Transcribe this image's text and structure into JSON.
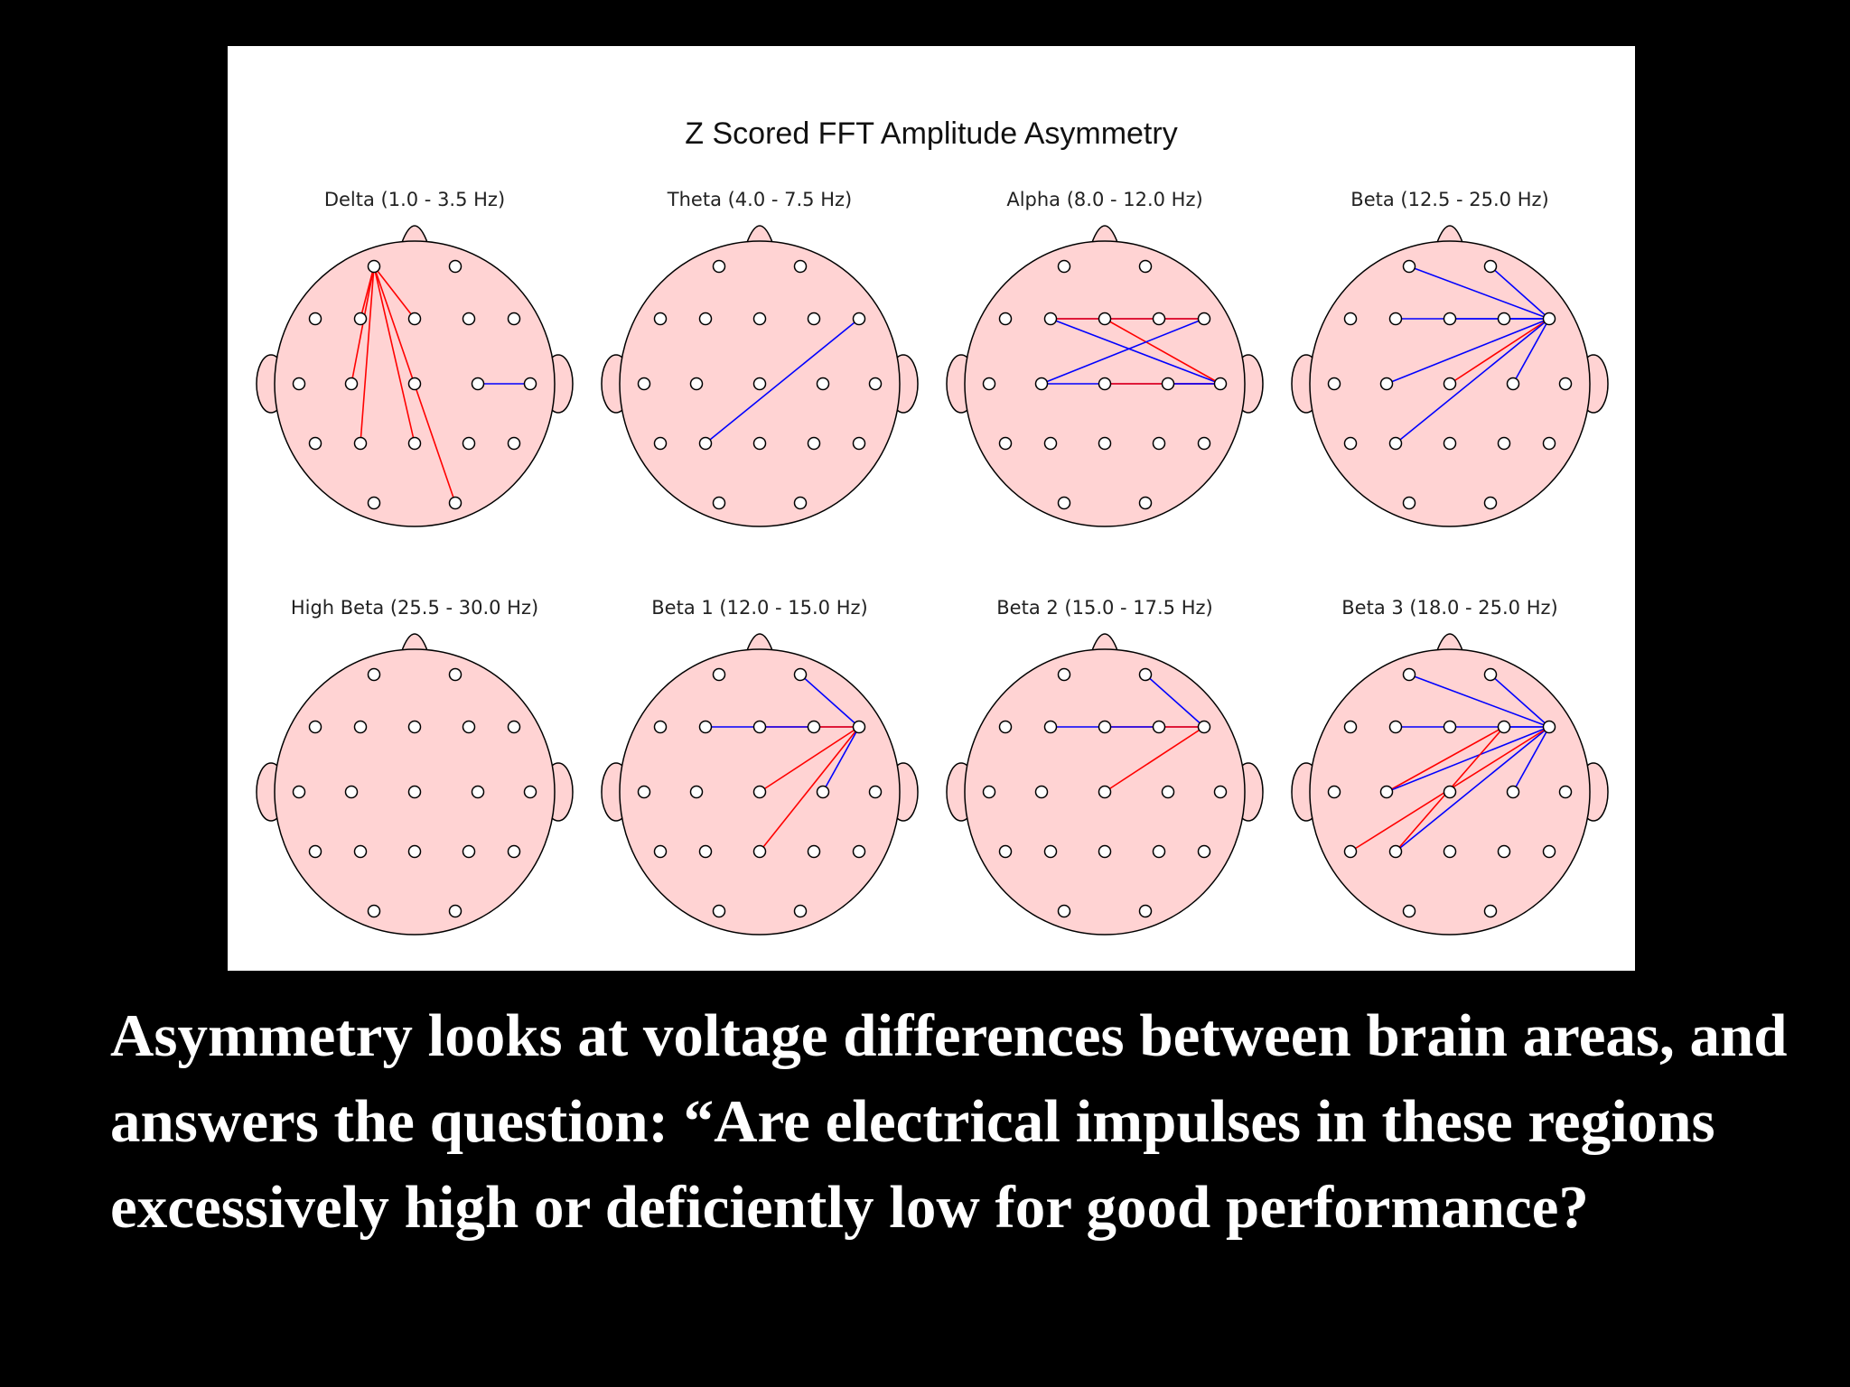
{
  "figure": {
    "title": "Z Scored FFT Amplitude Asymmetry",
    "colors": {
      "head_fill": "#ffd3d3",
      "head_outline": "#000000",
      "electrode_fill": "#ffffff",
      "line_red": "#ff0000",
      "line_blue": "#0000ff"
    },
    "panels": [
      {
        "label": "Delta (1.0 - 3.5 Hz)",
        "connections": [
          {
            "from": "Fp1",
            "to": "F3",
            "color": "red"
          },
          {
            "from": "Fp1",
            "to": "Fz",
            "color": "red"
          },
          {
            "from": "Fp1",
            "to": "C3",
            "color": "red"
          },
          {
            "from": "Fp1",
            "to": "P3",
            "color": "red"
          },
          {
            "from": "Fp1",
            "to": "Pz",
            "color": "red"
          },
          {
            "from": "Fp1",
            "to": "O2",
            "color": "red"
          },
          {
            "from": "C4",
            "to": "T4",
            "color": "blue"
          }
        ]
      },
      {
        "label": "Theta (4.0 - 7.5 Hz)",
        "connections": [
          {
            "from": "F8",
            "to": "P3",
            "color": "blue"
          }
        ]
      },
      {
        "label": "Alpha (8.0 - 12.0 Hz)",
        "connections": [
          {
            "from": "F3",
            "to": "Fz",
            "color": "blue"
          },
          {
            "from": "Fz",
            "to": "F4",
            "color": "blue"
          },
          {
            "from": "F4",
            "to": "F8",
            "color": "blue"
          },
          {
            "from": "F3",
            "to": "F8",
            "color": "red"
          },
          {
            "from": "F3",
            "to": "T4",
            "color": "blue"
          },
          {
            "from": "Fz",
            "to": "T4",
            "color": "red"
          },
          {
            "from": "C3",
            "to": "F8",
            "color": "blue"
          },
          {
            "from": "C3",
            "to": "T4",
            "color": "blue"
          },
          {
            "from": "Cz",
            "to": "T4",
            "color": "red"
          },
          {
            "from": "C4",
            "to": "T4",
            "color": "blue"
          }
        ]
      },
      {
        "label": "Beta (12.5 - 25.0 Hz)",
        "connections": [
          {
            "from": "Fp1",
            "to": "F8",
            "color": "blue"
          },
          {
            "from": "Fp2",
            "to": "F8",
            "color": "blue"
          },
          {
            "from": "F3",
            "to": "F8",
            "color": "blue"
          },
          {
            "from": "Fz",
            "to": "F8",
            "color": "blue"
          },
          {
            "from": "F4",
            "to": "F8",
            "color": "blue"
          },
          {
            "from": "C3",
            "to": "F8",
            "color": "blue"
          },
          {
            "from": "Cz",
            "to": "F8",
            "color": "red"
          },
          {
            "from": "C4",
            "to": "F8",
            "color": "blue"
          },
          {
            "from": "P3",
            "to": "F8",
            "color": "blue"
          }
        ]
      },
      {
        "label": "High Beta (25.5 - 30.0 Hz)",
        "connections": []
      },
      {
        "label": "Beta 1 (12.0 - 15.0 Hz)",
        "connections": [
          {
            "from": "F3",
            "to": "Fz",
            "color": "blue"
          },
          {
            "from": "Fz",
            "to": "F4",
            "color": "red"
          },
          {
            "from": "Fz",
            "to": "F8",
            "color": "blue"
          },
          {
            "from": "F4",
            "to": "F8",
            "color": "red"
          },
          {
            "from": "Fp2",
            "to": "F8",
            "color": "blue"
          },
          {
            "from": "Cz",
            "to": "F8",
            "color": "red"
          },
          {
            "from": "Pz",
            "to": "F8",
            "color": "red"
          },
          {
            "from": "C4",
            "to": "F8",
            "color": "blue"
          }
        ]
      },
      {
        "label": "Beta 2 (15.0 - 17.5 Hz)",
        "connections": [
          {
            "from": "F3",
            "to": "Fz",
            "color": "blue"
          },
          {
            "from": "Fz",
            "to": "F4",
            "color": "red"
          },
          {
            "from": "Fz",
            "to": "F8",
            "color": "blue"
          },
          {
            "from": "F4",
            "to": "F8",
            "color": "red"
          },
          {
            "from": "Fp2",
            "to": "F8",
            "color": "blue"
          },
          {
            "from": "Cz",
            "to": "F8",
            "color": "red"
          }
        ]
      },
      {
        "label": "Beta 3 (18.0 - 25.0 Hz)",
        "connections": [
          {
            "from": "Fp1",
            "to": "F8",
            "color": "blue"
          },
          {
            "from": "Fp2",
            "to": "F8",
            "color": "blue"
          },
          {
            "from": "F3",
            "to": "F8",
            "color": "blue"
          },
          {
            "from": "F4",
            "to": "F8",
            "color": "blue"
          },
          {
            "from": "C3",
            "to": "F4",
            "color": "red"
          },
          {
            "from": "C3",
            "to": "F8",
            "color": "blue"
          },
          {
            "from": "C4",
            "to": "F8",
            "color": "blue"
          },
          {
            "from": "P3",
            "to": "F8",
            "color": "blue"
          },
          {
            "from": "P3",
            "to": "F4",
            "color": "red"
          },
          {
            "from": "T5",
            "to": "F8",
            "color": "red"
          }
        ]
      }
    ]
  },
  "caption": {
    "text": "Asymmetry looks at voltage differences between brain areas, and  answers the question: “Are electrical impulses in these regions excessively high or deficiently low for good performance?"
  }
}
